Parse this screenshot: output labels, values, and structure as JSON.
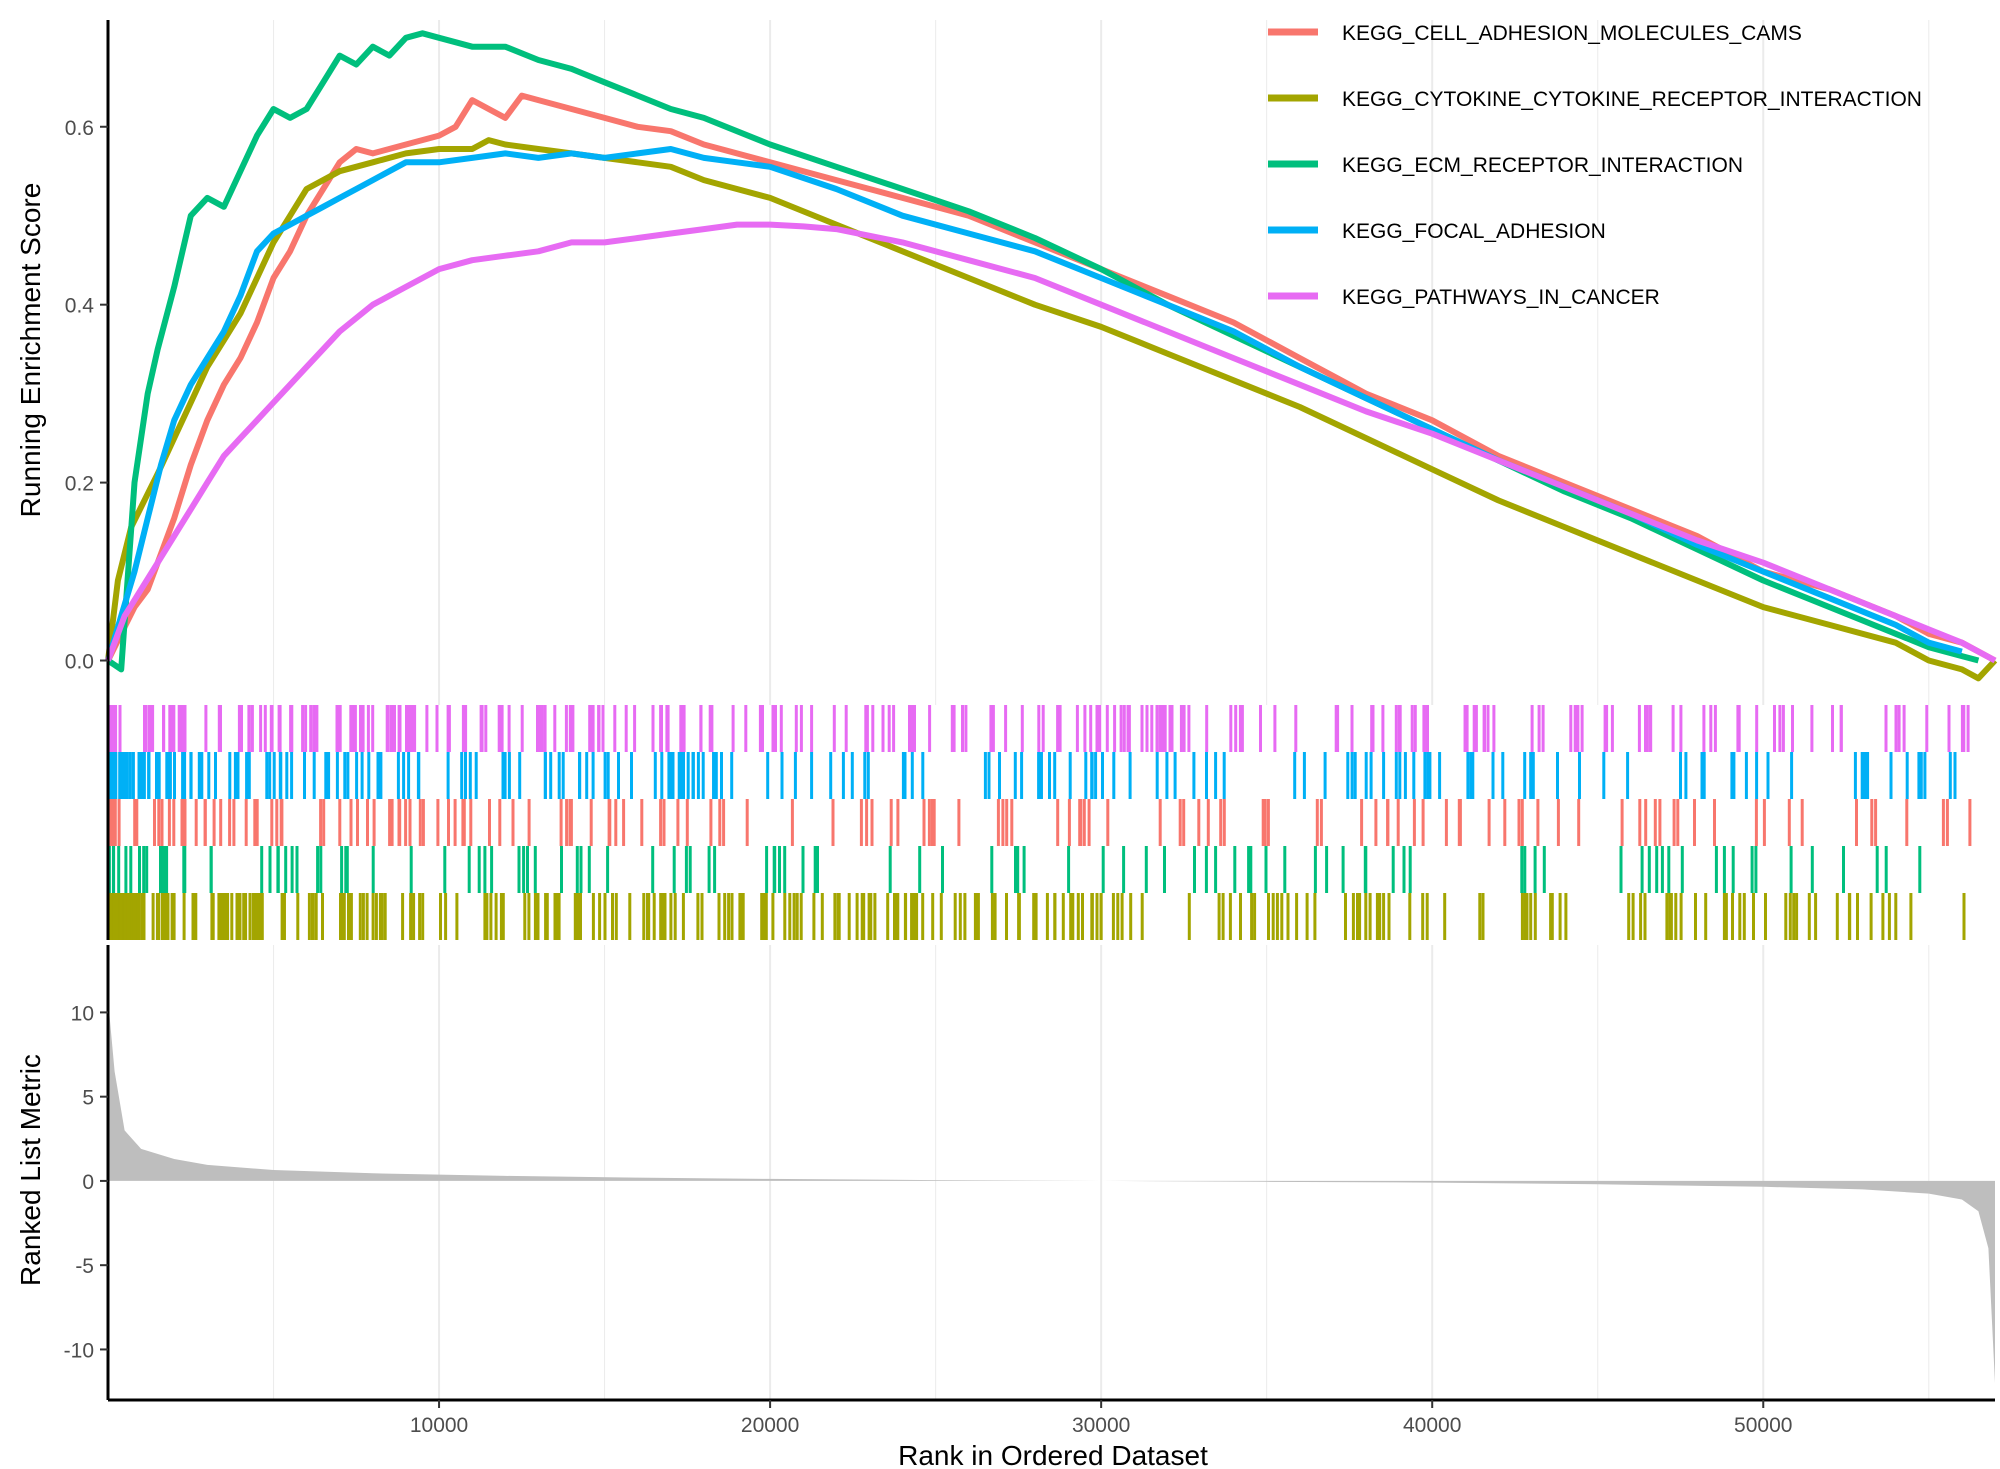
{
  "chart_data": {
    "type": "line",
    "xlabel": "Rank in Ordered Dataset",
    "xlim": [
      0,
      57000
    ],
    "x_ticks": [
      10000,
      20000,
      30000,
      40000,
      50000
    ],
    "x_tick_labels": [
      "10000",
      "20000",
      "30000",
      "40000",
      "50000"
    ],
    "grid": "vertical",
    "legend_position": "top-right",
    "panels": [
      {
        "name": "running-enrichment",
        "ylabel": "Running Enrichment Score",
        "ylim": [
          -0.05,
          0.72
        ],
        "y_ticks": [
          0.0,
          0.2,
          0.4,
          0.6
        ],
        "y_tick_labels": [
          "0.0",
          "0.2",
          "0.4",
          "0.6"
        ]
      },
      {
        "name": "gene-hits",
        "ylabel": "",
        "row_order_top_to_bottom": [
          "KEGG_PATHWAYS_IN_CANCER",
          "KEGG_FOCAL_ADHESION",
          "KEGG_CELL_ADHESION_MOLECULES_CAMS",
          "KEGG_ECM_RECEPTOR_INTERACTION",
          "KEGG_CYTOKINE_CYTOKINE_RECEPTOR_INTERACTION"
        ]
      },
      {
        "name": "ranked-list-metric",
        "ylabel": "Ranked List Metric",
        "ylim": [
          -13,
          14
        ],
        "y_ticks": [
          -10,
          -5,
          0,
          5,
          10
        ],
        "y_tick_labels": [
          "-10",
          "-5",
          "0",
          "5",
          "10"
        ],
        "x": [
          0,
          200,
          500,
          1000,
          2000,
          3000,
          5000,
          8000,
          12000,
          16000,
          20000,
          25000,
          30000,
          35000,
          40000,
          45000,
          50000,
          53000,
          55000,
          56000,
          56500,
          56800,
          57000
        ],
        "values": [
          10.8,
          6.5,
          3.0,
          1.9,
          1.3,
          0.95,
          0.65,
          0.45,
          0.3,
          0.2,
          0.12,
          0.05,
          0.0,
          -0.05,
          -0.1,
          -0.2,
          -0.35,
          -0.5,
          -0.75,
          -1.1,
          -1.8,
          -4.0,
          -12.0
        ]
      }
    ],
    "series": [
      {
        "name": "KEGG_CELL_ADHESION_MOLECULES_CAMS",
        "color": "#F8766D",
        "x": [
          0,
          400,
          800,
          1200,
          1600,
          2000,
          2500,
          3000,
          3500,
          4000,
          4500,
          5000,
          5500,
          6000,
          6500,
          7000,
          7500,
          8000,
          9000,
          10000,
          10500,
          11000,
          11500,
          12000,
          12500,
          13000,
          14000,
          15000,
          16000,
          17000,
          18000,
          20000,
          22000,
          24000,
          26000,
          28000,
          30000,
          32000,
          34000,
          36000,
          38000,
          40000,
          42000,
          44000,
          46000,
          48000,
          50000,
          52000,
          54000,
          55000,
          56000,
          57000
        ],
        "values": [
          0.0,
          0.03,
          0.06,
          0.08,
          0.12,
          0.16,
          0.22,
          0.27,
          0.31,
          0.34,
          0.38,
          0.43,
          0.46,
          0.5,
          0.53,
          0.56,
          0.575,
          0.57,
          0.58,
          0.59,
          0.6,
          0.63,
          0.62,
          0.61,
          0.635,
          0.63,
          0.62,
          0.61,
          0.6,
          0.595,
          0.58,
          0.56,
          0.54,
          0.52,
          0.5,
          0.47,
          0.44,
          0.41,
          0.38,
          0.34,
          0.3,
          0.27,
          0.23,
          0.2,
          0.17,
          0.14,
          0.1,
          0.08,
          0.05,
          0.03,
          0.02,
          0.0
        ]
      },
      {
        "name": "KEGG_CYTOKINE_CYTOKINE_RECEPTOR_INTERACTION",
        "color": "#A3A500",
        "x": [
          0,
          300,
          700,
          1100,
          1500,
          2000,
          2500,
          3000,
          3500,
          4000,
          4500,
          5000,
          5500,
          6000,
          7000,
          8000,
          9000,
          10000,
          11000,
          11500,
          12000,
          13000,
          14000,
          15000,
          16000,
          17000,
          18000,
          20000,
          22000,
          24000,
          26000,
          28000,
          30000,
          32000,
          34000,
          36000,
          38000,
          40000,
          42000,
          44000,
          46000,
          48000,
          50000,
          52000,
          54000,
          55000,
          56000,
          56500,
          57000
        ],
        "values": [
          0.0,
          0.09,
          0.15,
          0.18,
          0.21,
          0.25,
          0.29,
          0.33,
          0.36,
          0.39,
          0.43,
          0.47,
          0.5,
          0.53,
          0.55,
          0.56,
          0.57,
          0.575,
          0.575,
          0.585,
          0.58,
          0.575,
          0.57,
          0.565,
          0.56,
          0.555,
          0.54,
          0.52,
          0.49,
          0.46,
          0.43,
          0.4,
          0.375,
          0.345,
          0.315,
          0.285,
          0.25,
          0.215,
          0.18,
          0.15,
          0.12,
          0.09,
          0.06,
          0.04,
          0.02,
          0.0,
          -0.01,
          -0.02,
          0.0
        ]
      },
      {
        "name": "KEGG_ECM_RECEPTOR_INTERACTION",
        "color": "#00BF7D",
        "x": [
          0,
          400,
          800,
          1200,
          1500,
          2000,
          2500,
          3000,
          3500,
          4000,
          4500,
          5000,
          5500,
          6000,
          6500,
          7000,
          7500,
          8000,
          8500,
          9000,
          9500,
          10000,
          11000,
          12000,
          13000,
          14000,
          15000,
          16000,
          17000,
          18000,
          20000,
          22000,
          24000,
          26000,
          28000,
          30000,
          32000,
          34000,
          36000,
          38000,
          40000,
          42000,
          44000,
          46000,
          48000,
          50000,
          52000,
          54000,
          55000,
          56000,
          56500
        ],
        "values": [
          0.0,
          -0.01,
          0.2,
          0.3,
          0.35,
          0.42,
          0.5,
          0.52,
          0.51,
          0.55,
          0.59,
          0.62,
          0.61,
          0.62,
          0.65,
          0.68,
          0.67,
          0.69,
          0.68,
          0.7,
          0.705,
          0.7,
          0.69,
          0.69,
          0.675,
          0.665,
          0.65,
          0.635,
          0.62,
          0.61,
          0.58,
          0.555,
          0.53,
          0.505,
          0.475,
          0.44,
          0.4,
          0.365,
          0.33,
          0.295,
          0.26,
          0.225,
          0.19,
          0.16,
          0.125,
          0.09,
          0.06,
          0.03,
          0.015,
          0.005,
          0.0
        ]
      },
      {
        "name": "KEGG_FOCAL_ADHESION",
        "color": "#00B0F6",
        "x": [
          0,
          400,
          800,
          1200,
          1600,
          2000,
          2500,
          3000,
          3500,
          4000,
          4500,
          5000,
          5500,
          6000,
          6500,
          7000,
          7500,
          8000,
          9000,
          10000,
          11000,
          12000,
          13000,
          14000,
          15000,
          16000,
          17000,
          18000,
          19000,
          20000,
          22000,
          24000,
          26000,
          28000,
          30000,
          32000,
          34000,
          36000,
          38000,
          40000,
          42000,
          44000,
          46000,
          48000,
          50000,
          52000,
          54000,
          55000,
          56000
        ],
        "values": [
          0.0,
          0.05,
          0.1,
          0.16,
          0.22,
          0.27,
          0.31,
          0.34,
          0.37,
          0.41,
          0.46,
          0.48,
          0.49,
          0.5,
          0.51,
          0.52,
          0.53,
          0.54,
          0.56,
          0.56,
          0.565,
          0.57,
          0.565,
          0.57,
          0.565,
          0.57,
          0.575,
          0.565,
          0.56,
          0.555,
          0.53,
          0.5,
          0.48,
          0.46,
          0.43,
          0.4,
          0.37,
          0.33,
          0.295,
          0.26,
          0.225,
          0.195,
          0.165,
          0.13,
          0.1,
          0.07,
          0.04,
          0.02,
          0.01
        ]
      },
      {
        "name": "KEGG_PATHWAYS_IN_CANCER",
        "color": "#E76BF3",
        "x": [
          0,
          500,
          1000,
          1500,
          2000,
          2500,
          3000,
          3500,
          4000,
          4500,
          5000,
          5500,
          6000,
          6500,
          7000,
          8000,
          9000,
          10000,
          11000,
          12000,
          13000,
          14000,
          15000,
          16000,
          17000,
          18000,
          19000,
          20000,
          21000,
          22000,
          24000,
          26000,
          28000,
          30000,
          32000,
          34000,
          36000,
          38000,
          40000,
          42000,
          44000,
          46000,
          48000,
          50000,
          52000,
          54000,
          55000,
          56000,
          57000
        ],
        "values": [
          0.0,
          0.05,
          0.08,
          0.11,
          0.14,
          0.17,
          0.2,
          0.23,
          0.25,
          0.27,
          0.29,
          0.31,
          0.33,
          0.35,
          0.37,
          0.4,
          0.42,
          0.44,
          0.45,
          0.455,
          0.46,
          0.47,
          0.47,
          0.475,
          0.48,
          0.485,
          0.49,
          0.49,
          0.488,
          0.485,
          0.47,
          0.45,
          0.43,
          0.4,
          0.37,
          0.34,
          0.31,
          0.28,
          0.255,
          0.225,
          0.195,
          0.165,
          0.135,
          0.11,
          0.08,
          0.05,
          0.035,
          0.02,
          0.0
        ]
      }
    ]
  }
}
